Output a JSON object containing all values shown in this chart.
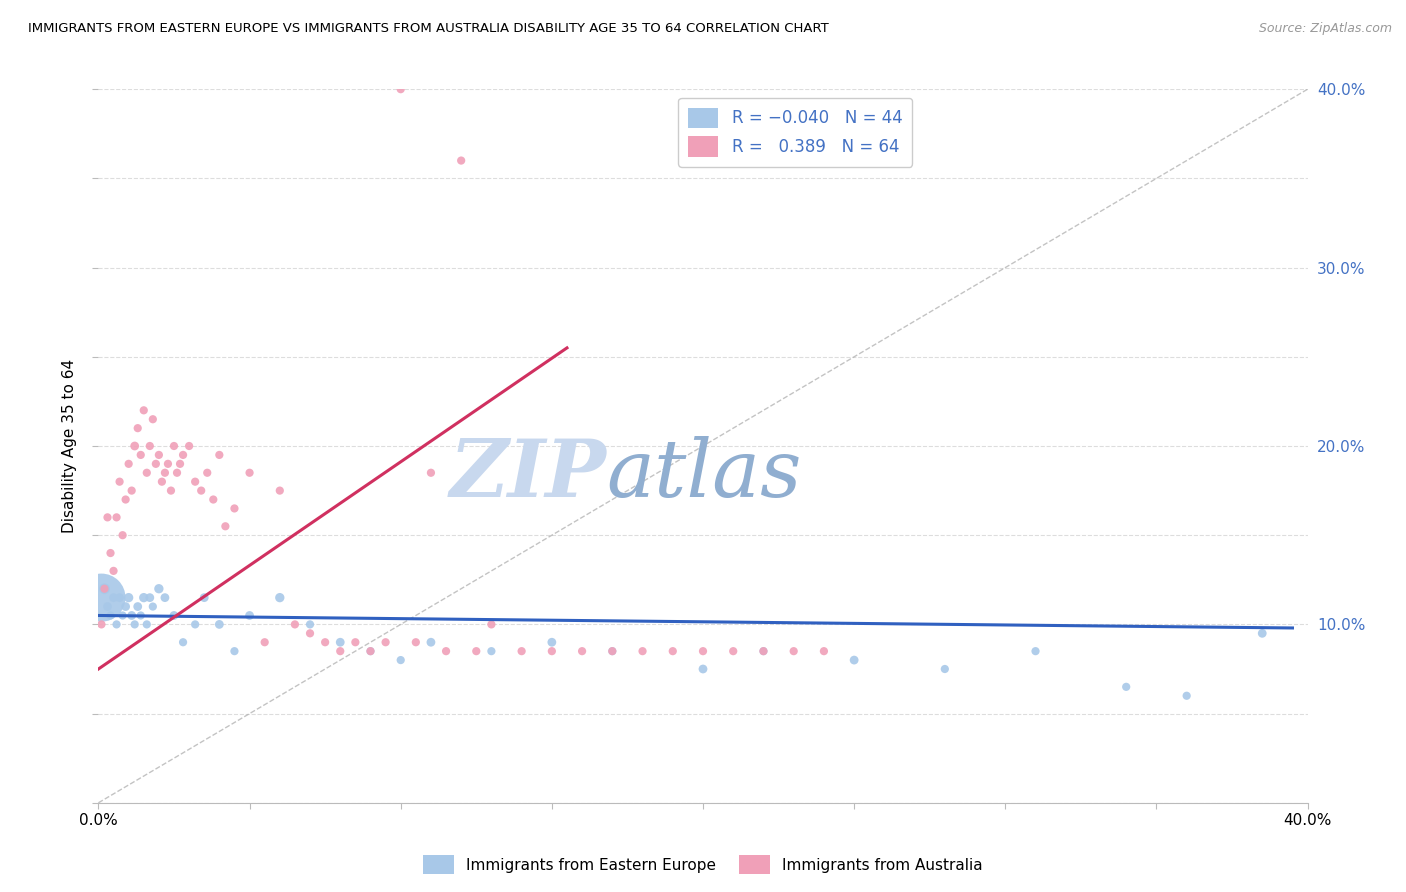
{
  "title": "IMMIGRANTS FROM EASTERN EUROPE VS IMMIGRANTS FROM AUSTRALIA DISABILITY AGE 35 TO 64 CORRELATION CHART",
  "source": "Source: ZipAtlas.com",
  "ylabel": "Disability Age 35 to 64",
  "xlim": [
    0.0,
    0.4
  ],
  "ylim": [
    0.0,
    0.4
  ],
  "legend_r1": "R = -0.040",
  "legend_n1": "N = 44",
  "legend_r2": "R =  0.389",
  "legend_n2": "N = 64",
  "color_blue": "#a8c8e8",
  "color_pink": "#f0a0b8",
  "line_blue": "#3060c0",
  "line_pink": "#d03060",
  "watermark_color": "#ccddf0",
  "blue_x": [
    0.001,
    0.002,
    0.003,
    0.004,
    0.005,
    0.006,
    0.007,
    0.008,
    0.009,
    0.01,
    0.011,
    0.012,
    0.013,
    0.014,
    0.015,
    0.016,
    0.017,
    0.018,
    0.02,
    0.022,
    0.025,
    0.028,
    0.032,
    0.035,
    0.04,
    0.045,
    0.05,
    0.06,
    0.07,
    0.08,
    0.09,
    0.1,
    0.11,
    0.13,
    0.15,
    0.17,
    0.2,
    0.22,
    0.25,
    0.28,
    0.31,
    0.34,
    0.36,
    0.385
  ],
  "blue_y": [
    0.115,
    0.12,
    0.11,
    0.105,
    0.115,
    0.1,
    0.115,
    0.105,
    0.11,
    0.115,
    0.105,
    0.1,
    0.11,
    0.105,
    0.115,
    0.1,
    0.115,
    0.11,
    0.12,
    0.115,
    0.105,
    0.09,
    0.1,
    0.115,
    0.1,
    0.085,
    0.105,
    0.115,
    0.1,
    0.09,
    0.085,
    0.08,
    0.09,
    0.085,
    0.09,
    0.085,
    0.075,
    0.085,
    0.08,
    0.075,
    0.085,
    0.065,
    0.06,
    0.095
  ],
  "blue_s": [
    1200,
    60,
    40,
    35,
    40,
    35,
    40,
    35,
    40,
    45,
    40,
    35,
    40,
    35,
    45,
    35,
    40,
    35,
    45,
    40,
    40,
    35,
    35,
    40,
    40,
    35,
    40,
    45,
    35,
    40,
    35,
    35,
    40,
    35,
    40,
    35,
    40,
    35,
    40,
    35,
    35,
    35,
    35,
    40
  ],
  "pink_x": [
    0.001,
    0.002,
    0.003,
    0.004,
    0.005,
    0.006,
    0.007,
    0.008,
    0.009,
    0.01,
    0.011,
    0.012,
    0.013,
    0.014,
    0.015,
    0.016,
    0.017,
    0.018,
    0.019,
    0.02,
    0.021,
    0.022,
    0.023,
    0.024,
    0.025,
    0.026,
    0.027,
    0.028,
    0.03,
    0.032,
    0.034,
    0.036,
    0.038,
    0.04,
    0.042,
    0.045,
    0.05,
    0.055,
    0.06,
    0.065,
    0.07,
    0.075,
    0.08,
    0.085,
    0.09,
    0.095,
    0.1,
    0.105,
    0.11,
    0.115,
    0.12,
    0.125,
    0.13,
    0.14,
    0.15,
    0.16,
    0.17,
    0.18,
    0.19,
    0.2,
    0.21,
    0.22,
    0.23,
    0.24
  ],
  "pink_y": [
    0.1,
    0.12,
    0.16,
    0.14,
    0.13,
    0.16,
    0.18,
    0.15,
    0.17,
    0.19,
    0.175,
    0.2,
    0.21,
    0.195,
    0.22,
    0.185,
    0.2,
    0.215,
    0.19,
    0.195,
    0.18,
    0.185,
    0.19,
    0.175,
    0.2,
    0.185,
    0.19,
    0.195,
    0.2,
    0.18,
    0.175,
    0.185,
    0.17,
    0.195,
    0.155,
    0.165,
    0.185,
    0.09,
    0.175,
    0.1,
    0.095,
    0.09,
    0.085,
    0.09,
    0.085,
    0.09,
    0.4,
    0.09,
    0.185,
    0.085,
    0.36,
    0.085,
    0.1,
    0.085,
    0.085,
    0.085,
    0.085,
    0.085,
    0.085,
    0.085,
    0.085,
    0.085,
    0.085,
    0.085
  ],
  "pink_s": [
    35,
    35,
    35,
    35,
    35,
    35,
    35,
    35,
    35,
    35,
    35,
    40,
    35,
    35,
    35,
    35,
    35,
    35,
    35,
    35,
    35,
    35,
    35,
    35,
    35,
    35,
    35,
    35,
    35,
    35,
    35,
    35,
    35,
    35,
    35,
    35,
    35,
    35,
    35,
    35,
    35,
    35,
    35,
    35,
    35,
    35,
    35,
    35,
    35,
    35,
    35,
    35,
    35,
    35,
    35,
    35,
    35,
    35,
    35,
    35,
    35,
    35,
    35,
    35
  ],
  "blue_line_x": [
    0.0,
    0.395
  ],
  "blue_line_y": [
    0.105,
    0.098
  ],
  "pink_line_x": [
    0.0,
    0.155
  ],
  "pink_line_y": [
    0.075,
    0.255
  ],
  "diag_line_x": [
    0.0,
    0.4
  ],
  "diag_line_y": [
    0.0,
    0.4
  ]
}
